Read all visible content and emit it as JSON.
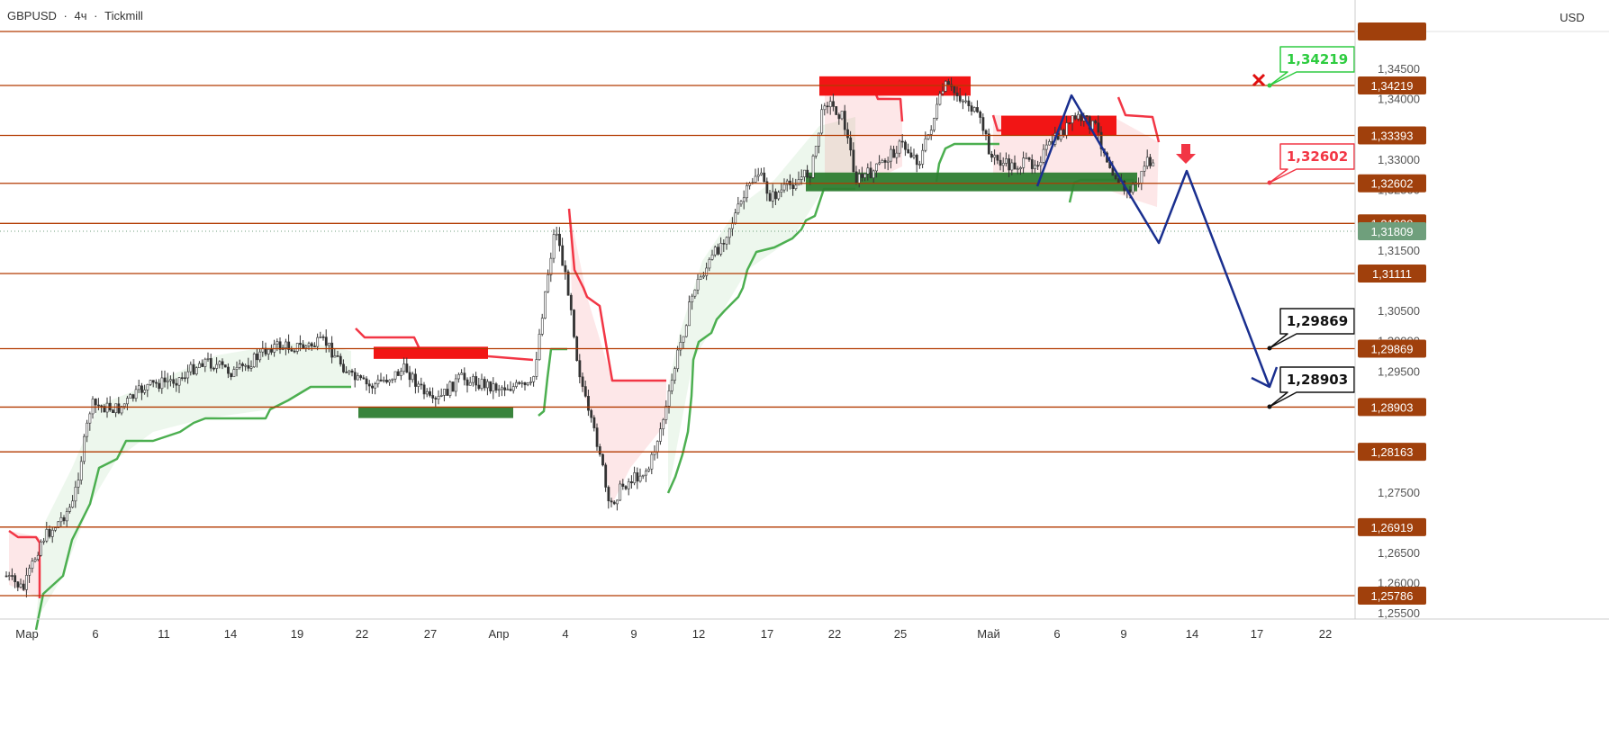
{
  "header": {
    "symbol": "GBPUSD",
    "timeframe": "4ч",
    "broker": "Tickmill",
    "separator": "·",
    "currency": "USD"
  },
  "colors": {
    "level_line": "#b23a00",
    "level_label_bg": "#a0400c",
    "current_price_bg": "#6f9f7c",
    "resistance": "#f21515",
    "support": "#2e7d32",
    "trend_up": "#4caf50",
    "trend_down": "#f23645",
    "forecast": "#1a2f8f",
    "target_green": "#2ecc40",
    "target_red": "#f23645",
    "target_black": "#111111",
    "candle_up": "#ffffff",
    "candle_down": "#333333"
  },
  "chart_data": {
    "type": "candlestick",
    "symbol": "GBPUSD",
    "ylim": [
      1.2535,
      1.3605
    ],
    "price_axis_ticks": [
      "1,34500",
      "1,34000",
      "1,33000",
      "1,32500",
      "1,31500",
      "1,30500",
      "1,30000",
      "1,29500",
      "1,27500",
      "1,26500",
      "1,26000",
      "1,25500"
    ],
    "time_axis_labels": [
      "Мар",
      "6",
      "11",
      "14",
      "19",
      "22",
      "27",
      "Апр",
      "4",
      "9",
      "12",
      "17",
      "22",
      "25",
      "Май",
      "6",
      "9",
      "14",
      "17",
      "22"
    ],
    "horizontal_levels": [
      "1,34219",
      "1,33393",
      "1,32602",
      "1,31939",
      "1,31111",
      "1,29869",
      "1,28903",
      "1,28163",
      "1,26919",
      "1,25786"
    ],
    "current_price": "1,31809",
    "annotations": [
      {
        "text": "1,34219",
        "color": "green",
        "marker": "x-icon"
      },
      {
        "text": "1,32602",
        "color": "red",
        "marker": "arrow-down-icon"
      },
      {
        "text": "1,29869",
        "color": "black"
      },
      {
        "text": "1,28903",
        "color": "black"
      }
    ],
    "zones": [
      {
        "kind": "resistance",
        "from": "22",
        "to": "Апр",
        "top": 1.299,
        "bottom": 1.297
      },
      {
        "kind": "support",
        "from": "22",
        "to": "Апр",
        "top": 1.289,
        "bottom": 1.2873
      },
      {
        "kind": "resistance",
        "from": "22",
        "to": "Май",
        "top": 1.3437,
        "bottom": 1.3405
      },
      {
        "kind": "resistance",
        "from": "Май",
        "to": "9",
        "top": 1.3372,
        "bottom": 1.334
      },
      {
        "kind": "support",
        "from": "22",
        "to": "9",
        "top": 1.3278,
        "bottom": 1.3247
      }
    ],
    "forecast_path": [
      {
        "x": "Май",
        "y": 1.326
      },
      {
        "x": "6",
        "y": 1.3405
      },
      {
        "x": "9",
        "y": 1.32
      },
      {
        "x": "9",
        "y": 1.316
      },
      {
        "x": "14",
        "y": 1.3283
      },
      {
        "x": "17",
        "y": 1.289
      }
    ]
  }
}
